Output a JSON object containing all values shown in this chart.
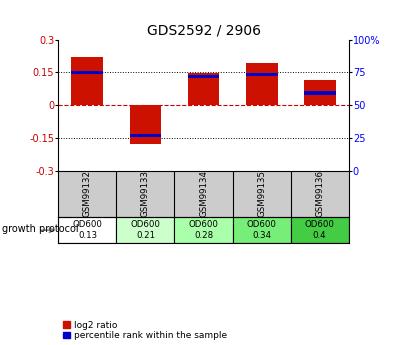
{
  "title": "GDS2592 / 2906",
  "samples": [
    "GSM99132",
    "GSM99133",
    "GSM99134",
    "GSM99135",
    "GSM99136"
  ],
  "log2_ratio": [
    0.22,
    -0.18,
    0.145,
    0.195,
    0.115
  ],
  "percentile_rank_y": [
    0.15,
    -0.14,
    0.13,
    0.14,
    0.055
  ],
  "protocol_label": "growth protocol",
  "protocol_values": [
    "OD600\n0.13",
    "OD600\n0.21",
    "OD600\n0.28",
    "OD600\n0.34",
    "OD600\n0.4"
  ],
  "protocol_colors": [
    "#ffffff",
    "#ccffcc",
    "#aaffaa",
    "#77ee77",
    "#44cc44"
  ],
  "ylim": [
    -0.3,
    0.3
  ],
  "yticks_left": [
    -0.3,
    -0.15,
    0.0,
    0.15,
    0.3
  ],
  "ytick_left_labels": [
    "-0.3",
    "-0.15",
    "0",
    "0.15",
    "0.3"
  ],
  "ytick_right_labels": [
    "0",
    "25",
    "50",
    "75",
    "100%"
  ],
  "bar_color_red": "#cc1100",
  "bar_color_blue": "#0000cc",
  "zero_line_color": "#cc0000",
  "bg_color": "#ffffff",
  "sample_bg": "#cccccc",
  "title_fontsize": 10,
  "tick_fontsize": 7,
  "bar_width": 0.55,
  "blue_bar_height": 0.015
}
